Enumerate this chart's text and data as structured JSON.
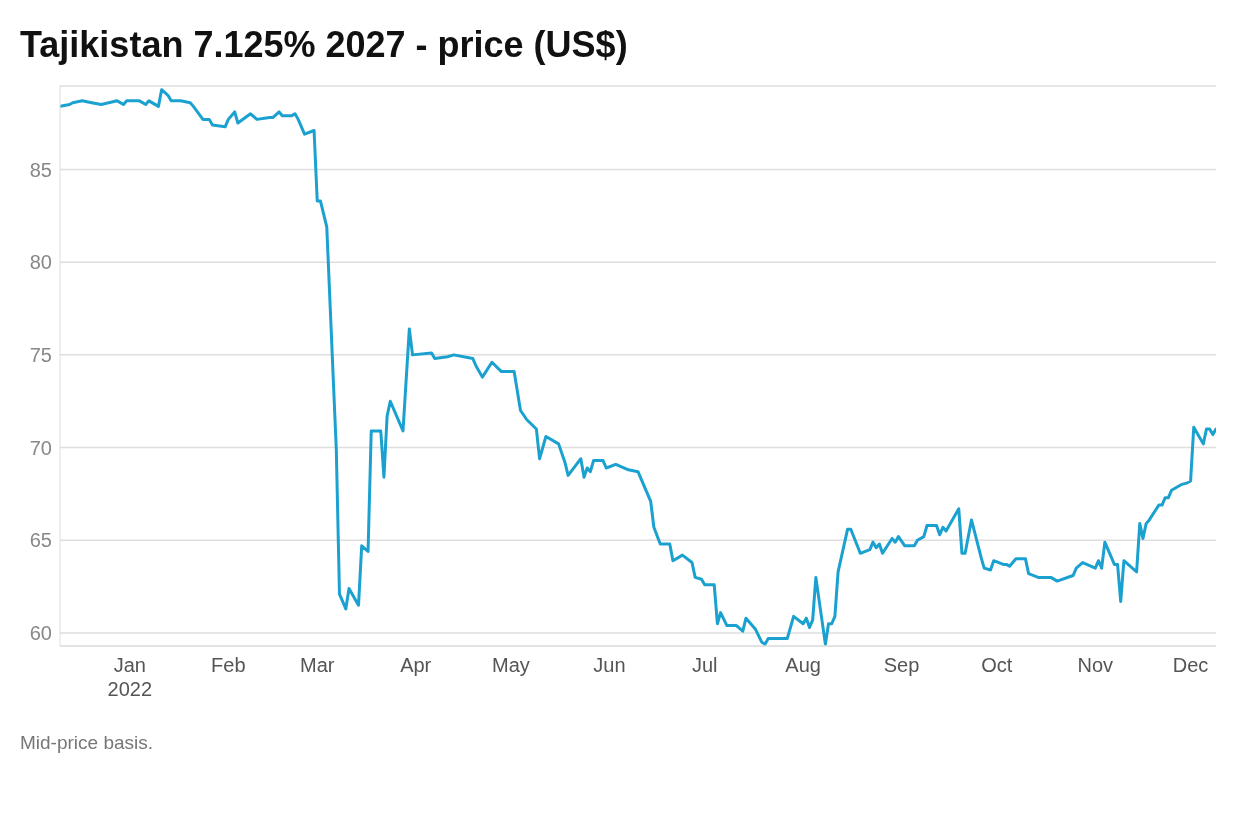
{
  "chart_data": {
    "type": "line",
    "title": "Tajikistan 7.125% 2027 - price (US$)",
    "annotations": [
      "Mid-price basis."
    ],
    "x": [
      "2021-12-10",
      "2021-12-13",
      "2021-12-14",
      "2021-12-17",
      "2021-12-20",
      "2021-12-23",
      "2021-12-28",
      "2021-12-30",
      "2021-12-31",
      "2022-01-04",
      "2022-01-06",
      "2022-01-07",
      "2022-01-10",
      "2022-01-11",
      "2022-01-13",
      "2022-01-14",
      "2022-01-17",
      "2022-01-20",
      "2022-01-21",
      "2022-01-24",
      "2022-01-26",
      "2022-01-27",
      "2022-01-31",
      "2022-02-01",
      "2022-02-03",
      "2022-02-04",
      "2022-02-08",
      "2022-02-10",
      "2022-02-14",
      "2022-02-15",
      "2022-02-17",
      "2022-02-18",
      "2022-02-21",
      "2022-02-22",
      "2022-02-23",
      "2022-02-25",
      "2022-02-28",
      "2022-03-01",
      "2022-03-02",
      "2022-03-04",
      "2022-03-07",
      "2022-03-08",
      "2022-03-10",
      "2022-03-11",
      "2022-03-14",
      "2022-03-15",
      "2022-03-17",
      "2022-03-18",
      "2022-03-21",
      "2022-03-22",
      "2022-03-23",
      "2022-03-24",
      "2022-03-28",
      "2022-03-30",
      "2022-03-31",
      "2022-04-06",
      "2022-04-07",
      "2022-04-11",
      "2022-04-13",
      "2022-04-19",
      "2022-04-20",
      "2022-04-22",
      "2022-04-25",
      "2022-04-28",
      "2022-05-02",
      "2022-05-04",
      "2022-05-06",
      "2022-05-09",
      "2022-05-10",
      "2022-05-12",
      "2022-05-16",
      "2022-05-18",
      "2022-05-19",
      "2022-05-23",
      "2022-05-24",
      "2022-05-25",
      "2022-05-26",
      "2022-05-27",
      "2022-05-30",
      "2022-05-31",
      "2022-06-03",
      "2022-06-07",
      "2022-06-10",
      "2022-06-14",
      "2022-06-15",
      "2022-06-17",
      "2022-06-20",
      "2022-06-21",
      "2022-06-24",
      "2022-06-27",
      "2022-06-28",
      "2022-06-30",
      "2022-07-01",
      "2022-07-04",
      "2022-07-05",
      "2022-07-06",
      "2022-07-08",
      "2022-07-11",
      "2022-07-13",
      "2022-07-14",
      "2022-07-17",
      "2022-07-19",
      "2022-07-20",
      "2022-07-21",
      "2022-07-27",
      "2022-07-29",
      "2022-08-01",
      "2022-08-02",
      "2022-08-03",
      "2022-08-04",
      "2022-08-05",
      "2022-08-08",
      "2022-08-09",
      "2022-08-10",
      "2022-08-11",
      "2022-08-12",
      "2022-08-15",
      "2022-08-16",
      "2022-08-19",
      "2022-08-22",
      "2022-08-23",
      "2022-08-24",
      "2022-08-25",
      "2022-08-26",
      "2022-08-29",
      "2022-08-30",
      "2022-08-31",
      "2022-09-02",
      "2022-09-05",
      "2022-09-06",
      "2022-09-08",
      "2022-09-09",
      "2022-09-12",
      "2022-09-13",
      "2022-09-14",
      "2022-09-15",
      "2022-09-19",
      "2022-09-20",
      "2022-09-21",
      "2022-09-23",
      "2022-09-26",
      "2022-09-27",
      "2022-09-29",
      "2022-09-30",
      "2022-10-03",
      "2022-10-04",
      "2022-10-05",
      "2022-10-07",
      "2022-10-10",
      "2022-10-11",
      "2022-10-14",
      "2022-10-18",
      "2022-10-20",
      "2022-10-25",
      "2022-10-26",
      "2022-10-28",
      "2022-11-01",
      "2022-11-02",
      "2022-11-03",
      "2022-11-04",
      "2022-11-07",
      "2022-11-08",
      "2022-11-09",
      "2022-11-10",
      "2022-11-14",
      "2022-11-15",
      "2022-11-16",
      "2022-11-17",
      "2022-11-18",
      "2022-11-21",
      "2022-11-22",
      "2022-11-23",
      "2022-11-24",
      "2022-11-25",
      "2022-11-28",
      "2022-11-30",
      "2022-12-01",
      "2022-12-02",
      "2022-12-05",
      "2022-12-06",
      "2022-12-07",
      "2022-12-08",
      "2022-12-09"
    ],
    "series": [
      {
        "color": "#1ba1d0",
        "values": [
          88.4,
          88.5,
          88.6,
          88.7,
          88.6,
          88.5,
          88.7,
          88.5,
          88.7,
          88.7,
          88.5,
          88.7,
          88.4,
          89.3,
          89.0,
          88.7,
          88.7,
          88.6,
          88.4,
          87.7,
          87.7,
          87.4,
          87.3,
          87.7,
          88.1,
          87.5,
          88.0,
          87.7,
          87.8,
          87.8,
          88.1,
          87.9,
          87.9,
          88.0,
          87.7,
          86.9,
          87.1,
          83.3,
          83.3,
          81.9,
          69.9,
          62.1,
          61.3,
          62.4,
          61.5,
          64.7,
          64.4,
          70.9,
          70.9,
          68.4,
          71.7,
          72.5,
          70.9,
          76.4,
          75.0,
          75.1,
          74.8,
          74.9,
          75.0,
          74.8,
          74.4,
          73.8,
          74.6,
          74.1,
          74.1,
          72.0,
          71.5,
          71.0,
          69.4,
          70.6,
          70.2,
          69.2,
          68.5,
          69.4,
          68.4,
          68.9,
          68.7,
          69.3,
          69.3,
          68.9,
          69.1,
          68.8,
          68.7,
          67.1,
          65.7,
          64.8,
          64.8,
          63.9,
          64.2,
          63.8,
          63.0,
          62.9,
          62.6,
          62.6,
          60.5,
          61.1,
          60.4,
          60.4,
          60.1,
          60.8,
          60.2,
          59.5,
          59.4,
          59.7,
          59.7,
          60.9,
          60.5,
          60.8,
          60.3,
          60.7,
          63.0,
          59.4,
          60.5,
          60.5,
          60.9,
          63.3,
          65.6,
          65.6,
          64.3,
          64.5,
          64.9,
          64.6,
          64.8,
          64.3,
          65.1,
          64.9,
          65.2,
          64.7,
          64.7,
          65.0,
          65.2,
          65.8,
          65.8,
          65.3,
          65.7,
          65.5,
          66.7,
          64.3,
          64.3,
          66.1,
          64.1,
          63.5,
          63.4,
          63.9,
          63.7,
          63.7,
          63.6,
          64.0,
          64.0,
          63.2,
          63.0,
          63.0,
          62.8,
          63.1,
          63.5,
          63.8,
          63.5,
          63.9,
          63.5,
          64.9,
          63.7,
          63.7,
          61.7,
          63.9,
          63.3,
          65.9,
          65.1,
          65.9,
          66.1,
          66.9,
          66.9,
          67.3,
          67.3,
          67.7,
          68.0,
          68.1,
          68.2,
          71.1,
          70.2,
          71.0,
          71.0,
          70.7,
          71.0
        ]
      }
    ],
    "xlim": [
      "2021-12-10",
      "2022-12-09"
    ],
    "xticks": [
      {
        "value": "2022-01-01",
        "label": "Jan\n2022"
      },
      {
        "value": "2022-02-01",
        "label": "Feb"
      },
      {
        "value": "2022-03-01",
        "label": "Mar"
      },
      {
        "value": "2022-04-01",
        "label": "Apr"
      },
      {
        "value": "2022-05-01",
        "label": "May"
      },
      {
        "value": "2022-06-01",
        "label": "Jun"
      },
      {
        "value": "2022-07-01",
        "label": "Jul"
      },
      {
        "value": "2022-08-01",
        "label": "Aug"
      },
      {
        "value": "2022-09-01",
        "label": "Sep"
      },
      {
        "value": "2022-10-01",
        "label": "Oct"
      },
      {
        "value": "2022-11-01",
        "label": "Nov"
      },
      {
        "value": "2022-12-01",
        "label": "Dec"
      }
    ],
    "ylim": [
      59.3,
      89.5
    ],
    "yticks": [
      60,
      65,
      70,
      75,
      80,
      85
    ],
    "grid": "y",
    "marker": "none",
    "line_style": "solid"
  }
}
